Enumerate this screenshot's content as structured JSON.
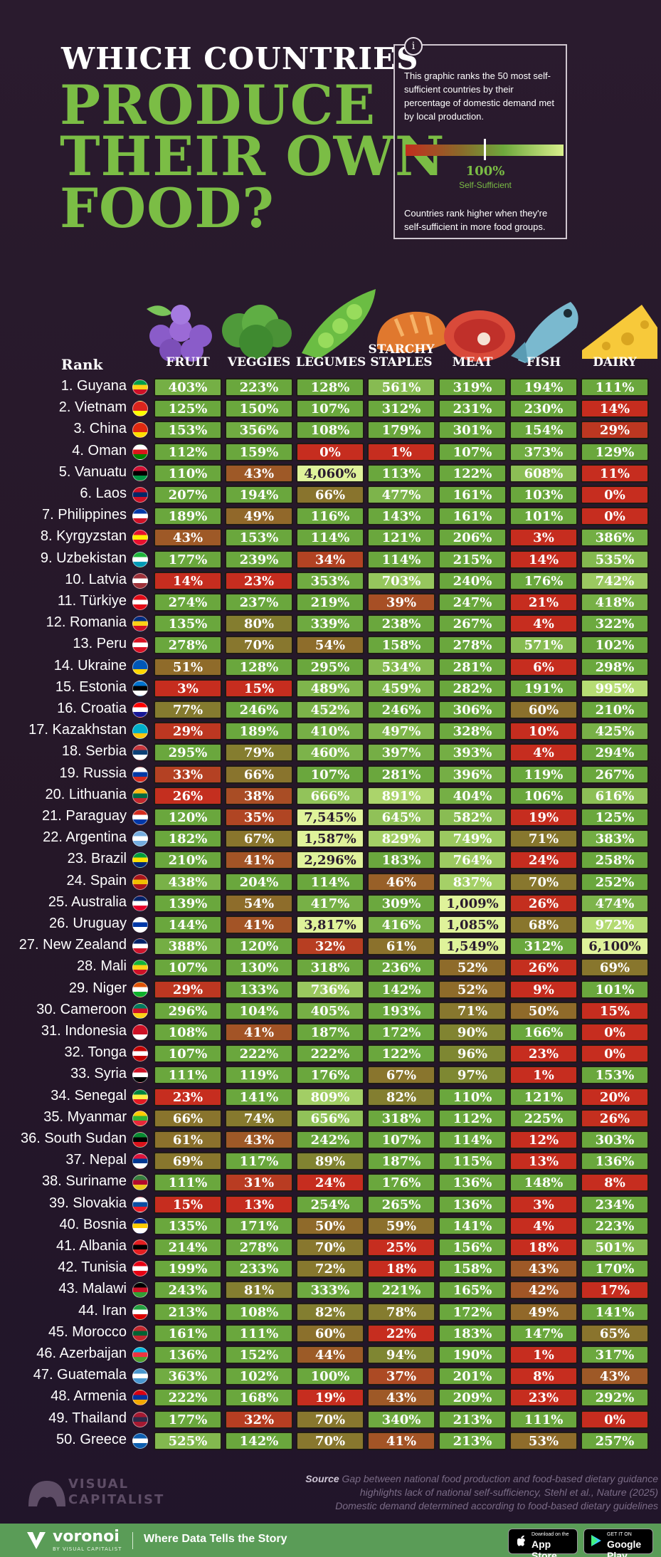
{
  "header": {
    "line1": "WHICH COUNTRIES",
    "line2": "PRODUCE",
    "line3": "THEIR OWN",
    "line4": "FOOD?"
  },
  "info": {
    "icon": "i",
    "text1": "This graphic ranks the 50 most self-sufficient countries by their percentage of domestic demand met by local production.",
    "legend_value": "100%",
    "legend_label": "Self-Sufficient",
    "text2": "Countries rank higher when they're self-sufficient in more food groups."
  },
  "rank_label": "Rank",
  "colors": {
    "low": "#c62d1f",
    "mid": "#8f6a2a",
    "ok": "#6aa73d",
    "high": "#dff29a",
    "title_green": "#7bbd45",
    "background": "#2a1b2e",
    "footer_green": "#5a9c57"
  },
  "chart_data": {
    "type": "table",
    "columns": [
      "FRUIT",
      "VEGGIES",
      "LEGUMES",
      "STARCHY STAPLES",
      "MEAT",
      "FISH",
      "DAIRY"
    ],
    "rows": [
      {
        "label": "1. Guyana",
        "flag": [
          "#009e49",
          "#fcd116",
          "#ce1126"
        ],
        "values": [
          "403%",
          "223%",
          "128%",
          "561%",
          "319%",
          "194%",
          "111%"
        ]
      },
      {
        "label": "2. Vietnam",
        "flag": [
          "#da251d",
          "#da251d",
          "#ffff00"
        ],
        "values": [
          "125%",
          "150%",
          "107%",
          "312%",
          "231%",
          "230%",
          "14%"
        ]
      },
      {
        "label": "3. China",
        "flag": [
          "#de2910",
          "#de2910",
          "#ffde00"
        ],
        "values": [
          "153%",
          "356%",
          "108%",
          "179%",
          "301%",
          "154%",
          "29%"
        ]
      },
      {
        "label": "4. Oman",
        "flag": [
          "#ffffff",
          "#db161b",
          "#008000"
        ],
        "values": [
          "112%",
          "159%",
          "0%",
          "1%",
          "107%",
          "373%",
          "129%"
        ]
      },
      {
        "label": "5. Vanuatu",
        "flag": [
          "#d21034",
          "#000000",
          "#009543"
        ],
        "values": [
          "110%",
          "43%",
          "4,060%",
          "113%",
          "122%",
          "608%",
          "11%"
        ]
      },
      {
        "label": "6. Laos",
        "flag": [
          "#ce1126",
          "#002868",
          "#ce1126"
        ],
        "values": [
          "207%",
          "194%",
          "66%",
          "477%",
          "161%",
          "103%",
          "0%"
        ]
      },
      {
        "label": "7. Philippines",
        "flag": [
          "#0038a8",
          "#ffffff",
          "#ce1126"
        ],
        "values": [
          "189%",
          "49%",
          "116%",
          "143%",
          "161%",
          "101%",
          "0%"
        ]
      },
      {
        "label": "8. Kyrgyzstan",
        "flag": [
          "#e8112d",
          "#ffef00",
          "#e8112d"
        ],
        "values": [
          "43%",
          "153%",
          "114%",
          "121%",
          "206%",
          "3%",
          "386%"
        ]
      },
      {
        "label": "9. Uzbekistan",
        "flag": [
          "#1eb53a",
          "#ffffff",
          "#0099b5"
        ],
        "values": [
          "177%",
          "239%",
          "34%",
          "114%",
          "215%",
          "14%",
          "535%"
        ]
      },
      {
        "label": "10. Latvia",
        "flag": [
          "#9e3039",
          "#ffffff",
          "#9e3039"
        ],
        "values": [
          "14%",
          "23%",
          "353%",
          "703%",
          "240%",
          "176%",
          "742%"
        ]
      },
      {
        "label": "11. Türkiye",
        "flag": [
          "#e30a17",
          "#ffffff",
          "#e30a17"
        ],
        "values": [
          "274%",
          "237%",
          "219%",
          "39%",
          "247%",
          "21%",
          "418%"
        ]
      },
      {
        "label": "12. Romania",
        "flag": [
          "#002b7f",
          "#fcd116",
          "#ce1126"
        ],
        "values": [
          "135%",
          "80%",
          "339%",
          "238%",
          "267%",
          "4%",
          "322%"
        ]
      },
      {
        "label": "13. Peru",
        "flag": [
          "#d91023",
          "#ffffff",
          "#d91023"
        ],
        "values": [
          "278%",
          "70%",
          "54%",
          "158%",
          "278%",
          "571%",
          "102%"
        ]
      },
      {
        "label": "14. Ukraine",
        "flag": [
          "#0057b7",
          "#0057b7",
          "#ffd700"
        ],
        "values": [
          "51%",
          "128%",
          "295%",
          "534%",
          "281%",
          "6%",
          "298%"
        ]
      },
      {
        "label": "15. Estonia",
        "flag": [
          "#0072ce",
          "#000000",
          "#ffffff"
        ],
        "values": [
          "3%",
          "15%",
          "489%",
          "459%",
          "282%",
          "191%",
          "995%"
        ]
      },
      {
        "label": "16. Croatia",
        "flag": [
          "#ff0000",
          "#ffffff",
          "#171796"
        ],
        "values": [
          "77%",
          "246%",
          "452%",
          "246%",
          "306%",
          "60%",
          "210%"
        ]
      },
      {
        "label": "17. Kazakhstan",
        "flag": [
          "#00afca",
          "#00afca",
          "#fec50c"
        ],
        "values": [
          "29%",
          "189%",
          "410%",
          "497%",
          "328%",
          "10%",
          "425%"
        ]
      },
      {
        "label": "18. Serbia",
        "flag": [
          "#c6363c",
          "#0c4076",
          "#ffffff"
        ],
        "values": [
          "295%",
          "79%",
          "460%",
          "397%",
          "393%",
          "4%",
          "294%"
        ]
      },
      {
        "label": "19. Russia",
        "flag": [
          "#ffffff",
          "#0039a6",
          "#d52b1e"
        ],
        "values": [
          "33%",
          "66%",
          "107%",
          "281%",
          "396%",
          "119%",
          "267%"
        ]
      },
      {
        "label": "20. Lithuania",
        "flag": [
          "#fdb913",
          "#006a44",
          "#c1272d"
        ],
        "values": [
          "26%",
          "38%",
          "666%",
          "891%",
          "404%",
          "106%",
          "616%"
        ]
      },
      {
        "label": "21. Paraguay",
        "flag": [
          "#d52b1e",
          "#ffffff",
          "#0038a8"
        ],
        "values": [
          "120%",
          "35%",
          "7,545%",
          "645%",
          "582%",
          "19%",
          "125%"
        ]
      },
      {
        "label": "22. Argentina",
        "flag": [
          "#74acdf",
          "#ffffff",
          "#74acdf"
        ],
        "values": [
          "182%",
          "67%",
          "1,587%",
          "829%",
          "749%",
          "71%",
          "383%"
        ]
      },
      {
        "label": "23. Brazil",
        "flag": [
          "#009c3b",
          "#ffdf00",
          "#002776"
        ],
        "values": [
          "210%",
          "41%",
          "2,296%",
          "183%",
          "764%",
          "24%",
          "258%"
        ]
      },
      {
        "label": "24. Spain",
        "flag": [
          "#aa151b",
          "#f1bf00",
          "#aa151b"
        ],
        "values": [
          "438%",
          "204%",
          "114%",
          "46%",
          "837%",
          "70%",
          "252%"
        ]
      },
      {
        "label": "25. Australia",
        "flag": [
          "#012169",
          "#ffffff",
          "#e4002b"
        ],
        "values": [
          "139%",
          "54%",
          "417%",
          "309%",
          "1,009%",
          "26%",
          "474%"
        ]
      },
      {
        "label": "26. Uruguay",
        "flag": [
          "#ffffff",
          "#0038a8",
          "#ffffff"
        ],
        "values": [
          "144%",
          "41%",
          "3,817%",
          "416%",
          "1,085%",
          "68%",
          "972%"
        ]
      },
      {
        "label": "27. New Zealand",
        "flag": [
          "#012169",
          "#ffffff",
          "#cc142b"
        ],
        "values": [
          "388%",
          "120%",
          "32%",
          "61%",
          "1,549%",
          "312%",
          "6,100%"
        ]
      },
      {
        "label": "28. Mali",
        "flag": [
          "#14b53a",
          "#fcd116",
          "#ce1126"
        ],
        "values": [
          "107%",
          "130%",
          "318%",
          "236%",
          "52%",
          "26%",
          "69%"
        ]
      },
      {
        "label": "29. Niger",
        "flag": [
          "#e05206",
          "#ffffff",
          "#0db02b"
        ],
        "values": [
          "29%",
          "133%",
          "736%",
          "142%",
          "52%",
          "9%",
          "101%"
        ]
      },
      {
        "label": "30. Cameroon",
        "flag": [
          "#007a5e",
          "#ce1126",
          "#fcd116"
        ],
        "values": [
          "296%",
          "104%",
          "405%",
          "193%",
          "71%",
          "50%",
          "15%"
        ]
      },
      {
        "label": "31. Indonesia",
        "flag": [
          "#ce1126",
          "#ce1126",
          "#ffffff"
        ],
        "values": [
          "108%",
          "41%",
          "187%",
          "172%",
          "90%",
          "166%",
          "0%"
        ]
      },
      {
        "label": "32. Tonga",
        "flag": [
          "#c10000",
          "#ffffff",
          "#c10000"
        ],
        "values": [
          "107%",
          "222%",
          "222%",
          "122%",
          "96%",
          "23%",
          "0%"
        ]
      },
      {
        "label": "33. Syria",
        "flag": [
          "#ce1126",
          "#ffffff",
          "#000000"
        ],
        "values": [
          "111%",
          "119%",
          "176%",
          "67%",
          "97%",
          "1%",
          "153%"
        ]
      },
      {
        "label": "34. Senegal",
        "flag": [
          "#00853f",
          "#fdef42",
          "#e31b23"
        ],
        "values": [
          "23%",
          "141%",
          "809%",
          "82%",
          "110%",
          "121%",
          "20%"
        ]
      },
      {
        "label": "35. Myanmar",
        "flag": [
          "#fecb00",
          "#34b233",
          "#ea2839"
        ],
        "values": [
          "66%",
          "74%",
          "656%",
          "318%",
          "112%",
          "225%",
          "26%"
        ]
      },
      {
        "label": "36. South Sudan",
        "flag": [
          "#078930",
          "#000000",
          "#da121a"
        ],
        "values": [
          "61%",
          "43%",
          "242%",
          "107%",
          "114%",
          "12%",
          "303%"
        ]
      },
      {
        "label": "37. Nepal",
        "flag": [
          "#dc143c",
          "#003893",
          "#ffffff"
        ],
        "values": [
          "69%",
          "117%",
          "89%",
          "187%",
          "115%",
          "13%",
          "136%"
        ]
      },
      {
        "label": "38. Suriname",
        "flag": [
          "#377e3f",
          "#b40a2d",
          "#ecc81d"
        ],
        "values": [
          "111%",
          "31%",
          "24%",
          "176%",
          "136%",
          "148%",
          "8%"
        ]
      },
      {
        "label": "39. Slovakia",
        "flag": [
          "#ffffff",
          "#0b4ea2",
          "#ee1c25"
        ],
        "values": [
          "15%",
          "13%",
          "254%",
          "265%",
          "136%",
          "3%",
          "234%"
        ]
      },
      {
        "label": "40. Bosnia",
        "flag": [
          "#002395",
          "#fecb00",
          "#ffffff"
        ],
        "values": [
          "135%",
          "171%",
          "50%",
          "59%",
          "141%",
          "4%",
          "223%"
        ]
      },
      {
        "label": "41. Albania",
        "flag": [
          "#e41e20",
          "#000000",
          "#e41e20"
        ],
        "values": [
          "214%",
          "278%",
          "70%",
          "25%",
          "156%",
          "18%",
          "501%"
        ]
      },
      {
        "label": "42. Tunisia",
        "flag": [
          "#e70013",
          "#ffffff",
          "#e70013"
        ],
        "values": [
          "199%",
          "233%",
          "72%",
          "18%",
          "158%",
          "43%",
          "170%"
        ]
      },
      {
        "label": "43. Malawi",
        "flag": [
          "#000000",
          "#ce1126",
          "#339e35"
        ],
        "values": [
          "243%",
          "81%",
          "333%",
          "221%",
          "165%",
          "42%",
          "17%"
        ]
      },
      {
        "label": "44. Iran",
        "flag": [
          "#239f40",
          "#ffffff",
          "#da0000"
        ],
        "values": [
          "213%",
          "108%",
          "82%",
          "78%",
          "172%",
          "49%",
          "141%"
        ]
      },
      {
        "label": "45. Morocco",
        "flag": [
          "#c1272d",
          "#006233",
          "#c1272d"
        ],
        "values": [
          "161%",
          "111%",
          "60%",
          "22%",
          "183%",
          "147%",
          "65%"
        ]
      },
      {
        "label": "46. Azerbaijan",
        "flag": [
          "#00b5e2",
          "#ef3340",
          "#509e2f"
        ],
        "values": [
          "136%",
          "152%",
          "44%",
          "94%",
          "190%",
          "1%",
          "317%"
        ]
      },
      {
        "label": "47. Guatemala",
        "flag": [
          "#4997d0",
          "#ffffff",
          "#4997d0"
        ],
        "values": [
          "363%",
          "102%",
          "100%",
          "37%",
          "201%",
          "8%",
          "43%"
        ]
      },
      {
        "label": "48. Armenia",
        "flag": [
          "#d90012",
          "#0033a0",
          "#f2a800"
        ],
        "values": [
          "222%",
          "168%",
          "19%",
          "43%",
          "209%",
          "23%",
          "292%"
        ]
      },
      {
        "label": "49. Thailand",
        "flag": [
          "#a51931",
          "#2d2a4a",
          "#a51931"
        ],
        "values": [
          "177%",
          "32%",
          "70%",
          "340%",
          "213%",
          "111%",
          "0%"
        ]
      },
      {
        "label": "50. Greece",
        "flag": [
          "#0d5eaf",
          "#ffffff",
          "#0d5eaf"
        ],
        "values": [
          "525%",
          "142%",
          "70%",
          "41%",
          "213%",
          "53%",
          "257%"
        ]
      }
    ]
  },
  "source": {
    "label": "Source",
    "line1": "Gap between national food production and food-based dietary guidance",
    "line2": "highlights lack of national self-sufficiency, Stehl et al., Nature (2025)",
    "line3": "Domestic demand determined according to food-based dietary guidelines"
  },
  "branding": {
    "vc_line1": "VISUAL",
    "vc_line2": "CAPITALIST",
    "footer_brand": "voronoi",
    "footer_by": "BY VISUAL CAPITALIST",
    "footer_tagline": "Where Data Tells the Story",
    "appstore_small": "Download on the",
    "appstore_big": "App Store",
    "googleplay_small": "GET IT ON",
    "googleplay_big": "Google Play"
  }
}
